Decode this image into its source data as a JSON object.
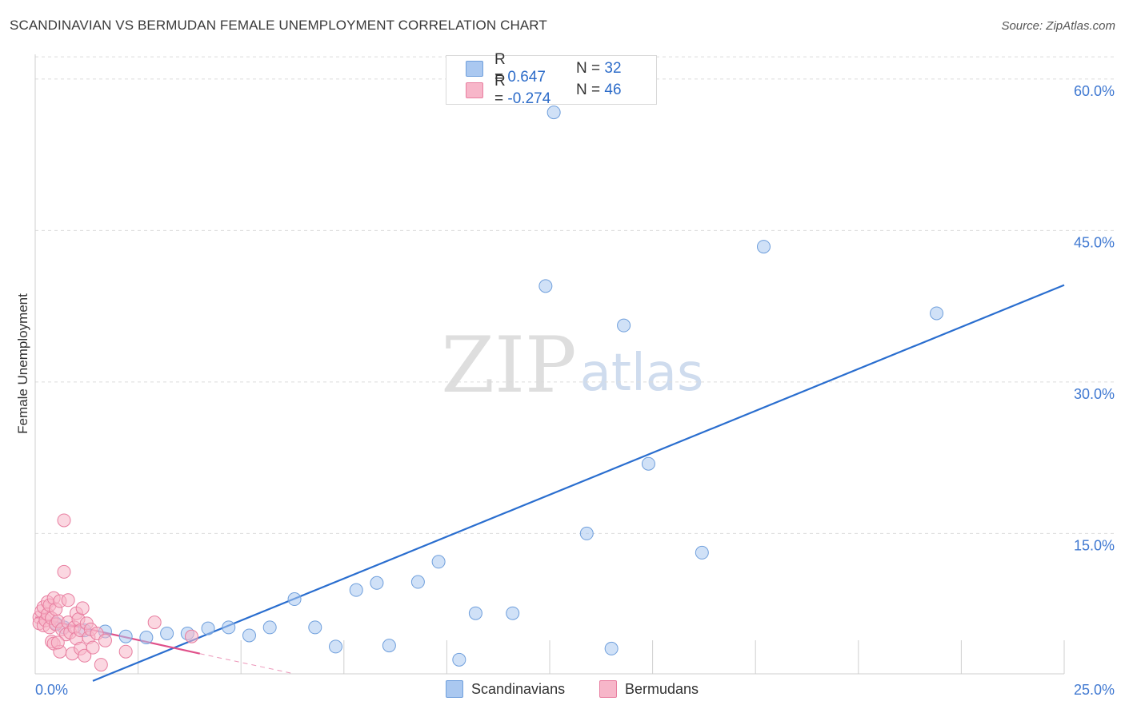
{
  "header": {
    "title": "SCANDINAVIAN VS BERMUDAN FEMALE UNEMPLOYMENT CORRELATION CHART",
    "source": "Source: ZipAtlas.com"
  },
  "legend_top": {
    "rows": [
      {
        "r_label": "R =",
        "r_value": "0.647",
        "n_label": "N =",
        "n_value": "32",
        "color": "#aac8f0"
      },
      {
        "r_label": "R =",
        "r_value": "-0.274",
        "n_label": "N =",
        "n_value": "46",
        "color": "#f7b6c9"
      }
    ]
  },
  "bottom_legend": {
    "items": [
      {
        "label": "Scandinavians",
        "color": "#aac8f0"
      },
      {
        "label": "Bermudans",
        "color": "#f7b6c9"
      }
    ]
  },
  "watermark": {
    "zip": "ZIP",
    "atlas": "atlas"
  },
  "chart_data": {
    "type": "scatter",
    "title": "SCANDINAVIAN VS BERMUDAN FEMALE UNEMPLOYMENT CORRELATION CHART",
    "xlabel": "",
    "ylabel": "Female Unemployment",
    "xlim": [
      0,
      25
    ],
    "ylim": [
      0,
      60
    ],
    "x_tick_labels": [
      "0.0%",
      "25.0%"
    ],
    "y_ticks": [
      15,
      30,
      45,
      60
    ],
    "y_tick_labels": [
      "15.0%",
      "30.0%",
      "45.0%",
      "60.0%"
    ],
    "grid": true,
    "series": [
      {
        "name": "Scandinavians",
        "color": "#aac8f0",
        "stroke": "#6f9fdc",
        "trend_color": "#2a6ecf",
        "trendline": {
          "x": [
            1.4,
            25.0
          ],
          "y": [
            -0.7,
            38.5
          ]
        },
        "points": [
          [
            0.5,
            5.0
          ],
          [
            0.7,
            4.6
          ],
          [
            1.2,
            4.3
          ],
          [
            1.7,
            4.2
          ],
          [
            2.2,
            3.7
          ],
          [
            2.7,
            3.6
          ],
          [
            3.2,
            4.0
          ],
          [
            3.7,
            4.0
          ],
          [
            4.2,
            4.5
          ],
          [
            4.7,
            4.6
          ],
          [
            5.2,
            3.8
          ],
          [
            5.7,
            4.6
          ],
          [
            6.3,
            7.4
          ],
          [
            6.8,
            4.6
          ],
          [
            7.3,
            2.7
          ],
          [
            7.8,
            8.3
          ],
          [
            8.3,
            9.0
          ],
          [
            8.6,
            2.8
          ],
          [
            9.3,
            9.1
          ],
          [
            9.8,
            11.1
          ],
          [
            10.3,
            1.4
          ],
          [
            10.7,
            6.0
          ],
          [
            11.6,
            6.0
          ],
          [
            12.4,
            38.4
          ],
          [
            12.6,
            55.6
          ],
          [
            13.4,
            13.9
          ],
          [
            14.0,
            2.5
          ],
          [
            14.3,
            34.5
          ],
          [
            14.9,
            20.8
          ],
          [
            16.2,
            12.0
          ],
          [
            17.7,
            42.3
          ],
          [
            21.9,
            35.7
          ]
        ]
      },
      {
        "name": "Bermudans",
        "color": "#f7b6c9",
        "stroke": "#e87ea0",
        "trend_color": "#e0508a",
        "trendline": {
          "x": [
            0.0,
            4.0
          ],
          "y": [
            5.6,
            2.0
          ]
        },
        "trend_extension": {
          "x": [
            4.0,
            6.3
          ],
          "y": [
            2.0,
            0.0
          ]
        },
        "points": [
          [
            0.1,
            5.6
          ],
          [
            0.1,
            5.0
          ],
          [
            0.15,
            6.2
          ],
          [
            0.2,
            4.8
          ],
          [
            0.2,
            6.6
          ],
          [
            0.25,
            5.3
          ],
          [
            0.3,
            7.1
          ],
          [
            0.3,
            5.9
          ],
          [
            0.35,
            4.6
          ],
          [
            0.35,
            6.8
          ],
          [
            0.4,
            3.2
          ],
          [
            0.4,
            5.5
          ],
          [
            0.45,
            7.5
          ],
          [
            0.45,
            3.0
          ],
          [
            0.5,
            6.4
          ],
          [
            0.5,
            4.9
          ],
          [
            0.55,
            5.2
          ],
          [
            0.6,
            7.2
          ],
          [
            0.6,
            2.2
          ],
          [
            0.65,
            4.4
          ],
          [
            0.7,
            15.2
          ],
          [
            0.7,
            10.1
          ],
          [
            0.75,
            3.9
          ],
          [
            0.8,
            7.3
          ],
          [
            0.8,
            5.1
          ],
          [
            0.85,
            4.1
          ],
          [
            0.9,
            2.0
          ],
          [
            0.95,
            4.6
          ],
          [
            1.0,
            6.0
          ],
          [
            1.0,
            3.5
          ],
          [
            1.05,
            5.4
          ],
          [
            1.1,
            2.5
          ],
          [
            1.1,
            4.3
          ],
          [
            1.15,
            6.5
          ],
          [
            1.2,
            1.8
          ],
          [
            1.25,
            5.0
          ],
          [
            1.3,
            3.6
          ],
          [
            1.35,
            4.4
          ],
          [
            1.4,
            2.6
          ],
          [
            1.5,
            4.0
          ],
          [
            1.6,
            0.9
          ],
          [
            1.7,
            3.3
          ],
          [
            2.2,
            2.2
          ],
          [
            2.9,
            5.1
          ],
          [
            3.8,
            3.7
          ],
          [
            0.55,
            3.1
          ]
        ]
      }
    ]
  }
}
